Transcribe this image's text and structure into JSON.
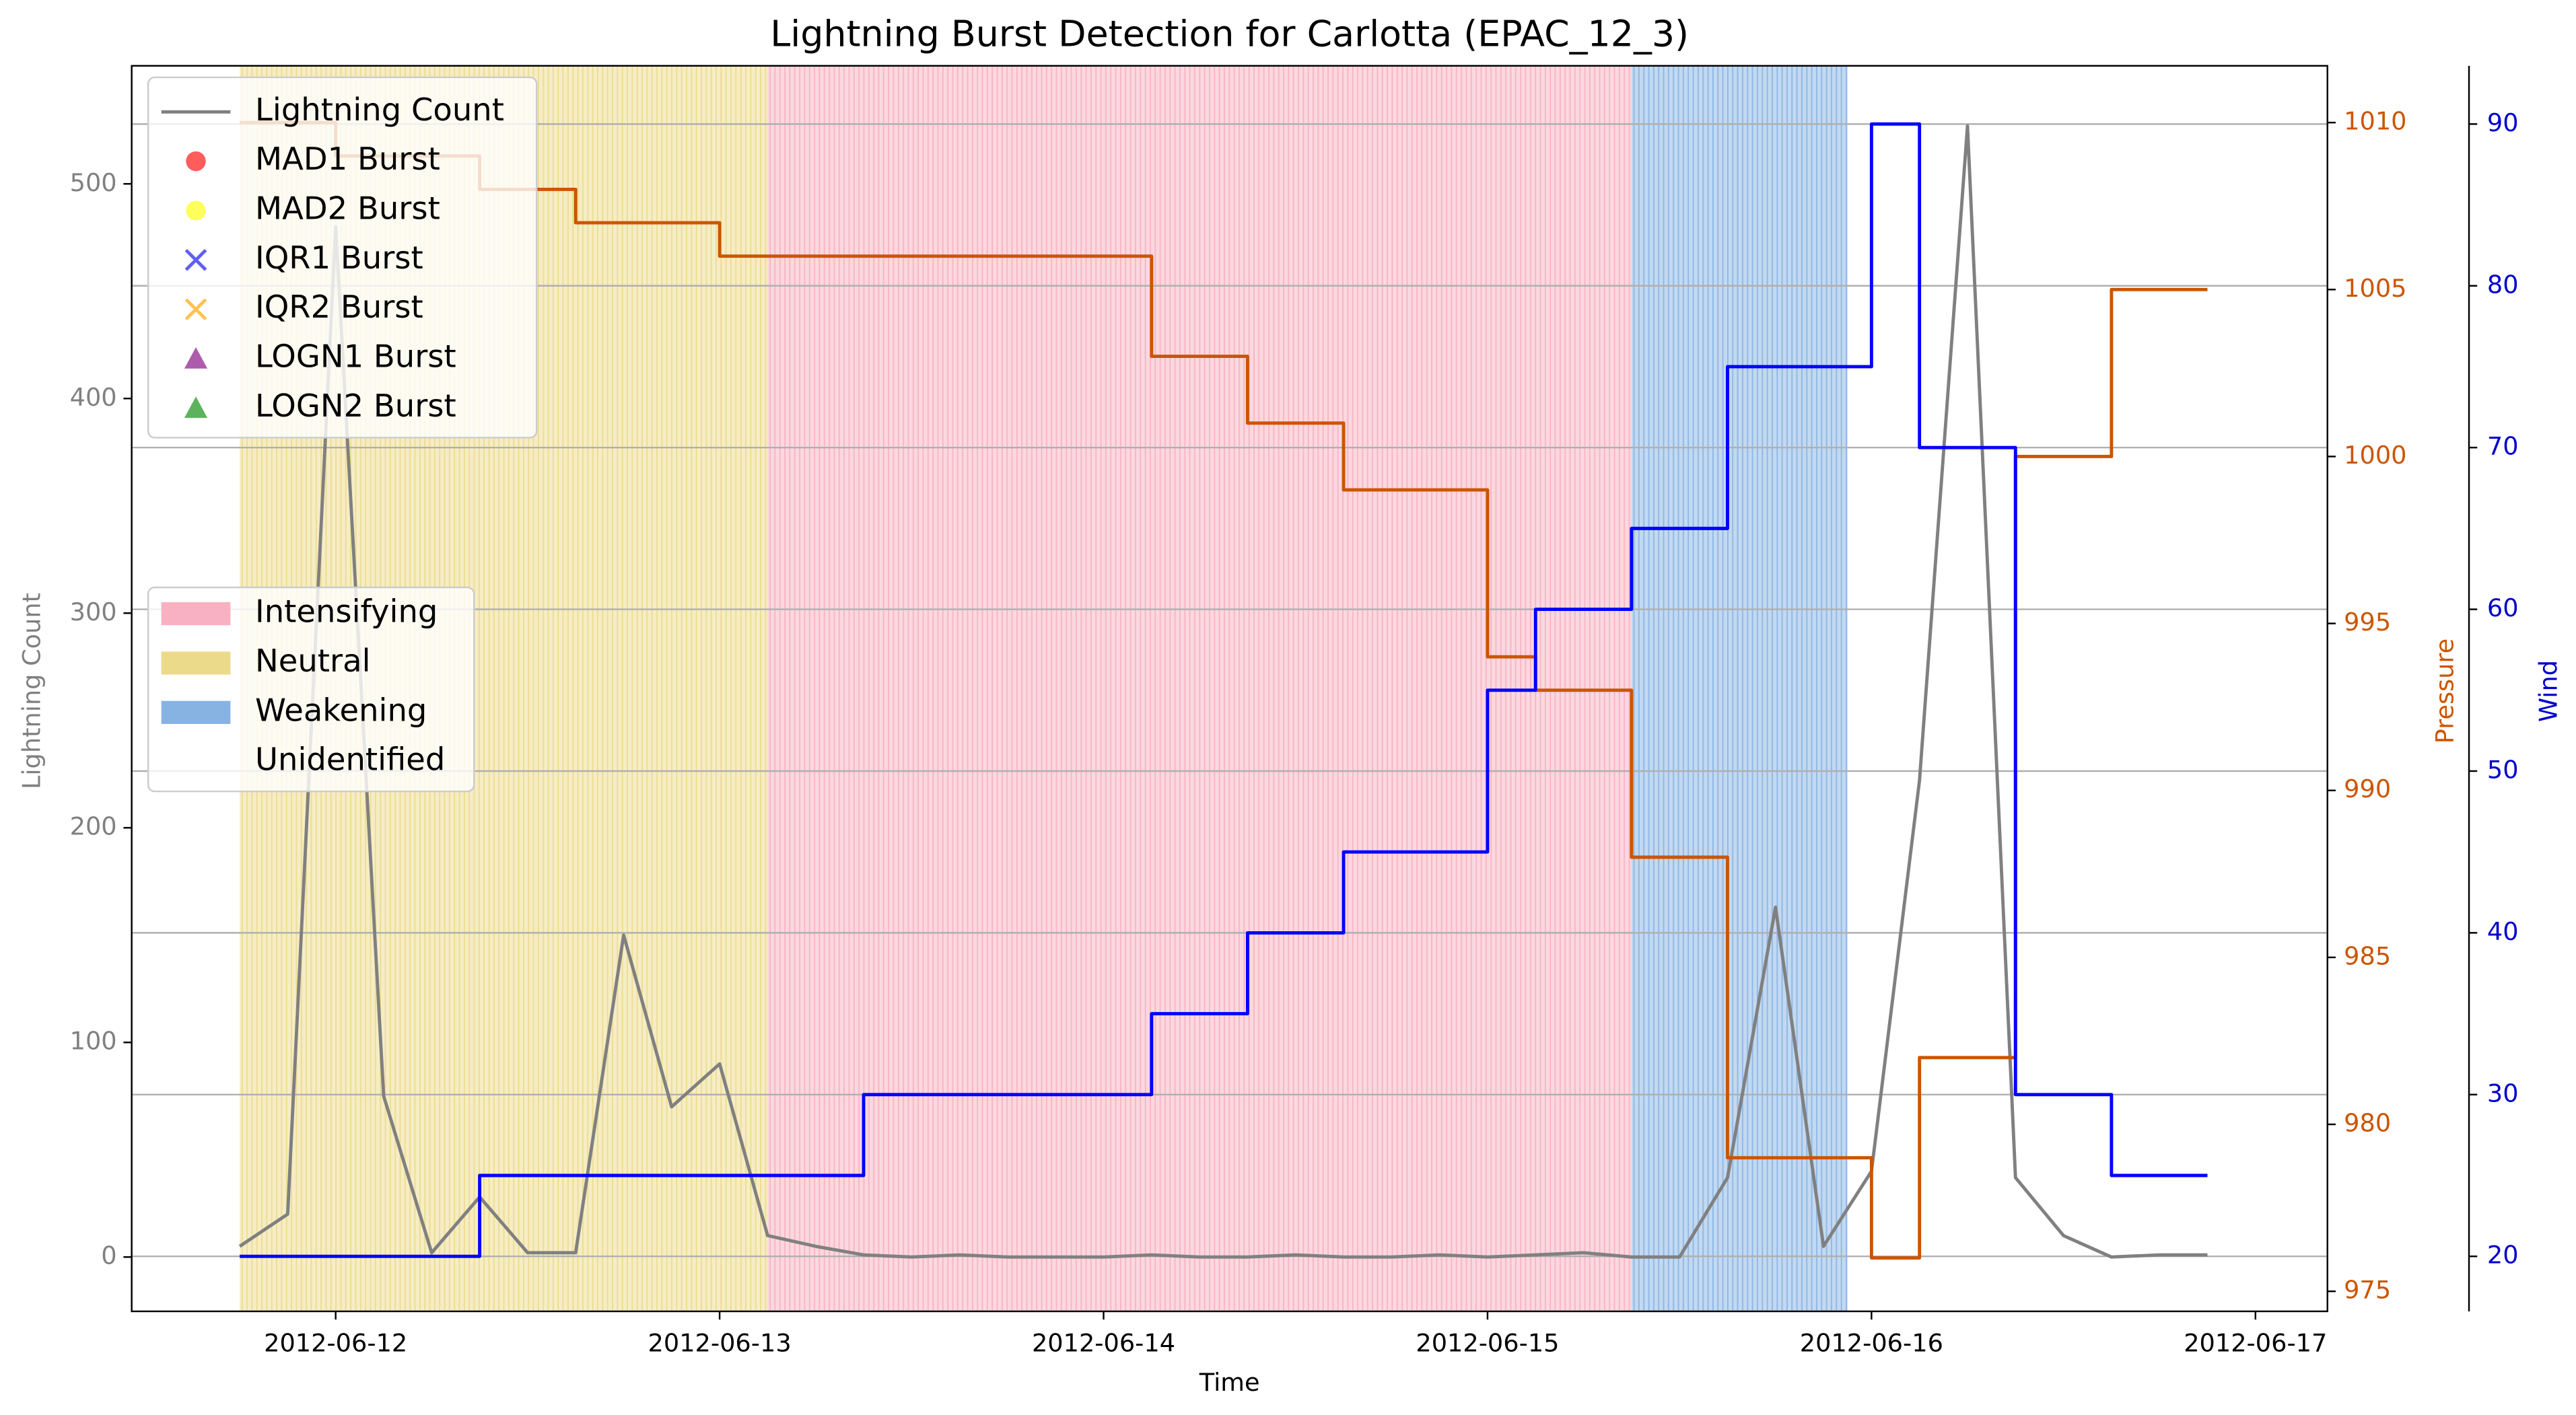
{
  "chart_data": {
    "type": "line",
    "title": "Lightning Burst Detection for Carlotta (EPAC_12_3)",
    "x_label": "Time",
    "y_label": "Lightning Count",
    "y2_label": "Pressure",
    "y3_label": "Wind",
    "x": [
      "2012-06-11T18:00",
      "2012-06-11T21:00",
      "2012-06-12T00:00",
      "2012-06-12T03:00",
      "2012-06-12T06:00",
      "2012-06-12T09:00",
      "2012-06-12T12:00",
      "2012-06-12T15:00",
      "2012-06-12T18:00",
      "2012-06-12T21:00",
      "2012-06-13T00:00",
      "2012-06-13T03:00",
      "2012-06-13T06:00",
      "2012-06-13T09:00",
      "2012-06-13T12:00",
      "2012-06-13T15:00",
      "2012-06-13T18:00",
      "2012-06-13T21:00",
      "2012-06-14T00:00",
      "2012-06-14T03:00",
      "2012-06-14T06:00",
      "2012-06-14T09:00",
      "2012-06-14T12:00",
      "2012-06-14T15:00",
      "2012-06-14T18:00",
      "2012-06-14T21:00",
      "2012-06-15T00:00",
      "2012-06-15T03:00",
      "2012-06-15T06:00",
      "2012-06-15T09:00",
      "2012-06-15T12:00",
      "2012-06-15T15:00",
      "2012-06-15T18:00",
      "2012-06-15T21:00",
      "2012-06-16T00:00",
      "2012-06-16T03:00",
      "2012-06-16T06:00",
      "2012-06-16T09:00",
      "2012-06-16T12:00",
      "2012-06-16T15:00",
      "2012-06-16T18:00",
      "2012-06-16T21:00"
    ],
    "series": [
      {
        "name": "Lightning Count",
        "color": "#808080",
        "axis": "y",
        "step": false,
        "values": [
          5,
          20,
          480,
          75,
          2,
          28,
          2,
          2,
          150,
          70,
          90,
          10,
          5,
          1,
          0,
          1,
          0,
          0,
          0,
          1,
          0,
          0,
          1,
          0,
          0,
          1,
          0,
          1,
          2,
          0,
          0,
          37,
          163,
          5,
          40,
          222,
          527,
          37,
          10,
          0,
          1,
          1
        ]
      },
      {
        "name": "Pressure",
        "color": "#cc5500",
        "axis": "y2",
        "step": true,
        "values": [
          1010,
          1010,
          1009,
          1009,
          1009,
          1008,
          1008,
          1007,
          1007,
          1007,
          1006,
          1006,
          1006,
          1006,
          1006,
          1006,
          1006,
          1006,
          1006,
          1003,
          1003,
          1001,
          1001,
          999,
          999,
          999,
          994,
          993,
          993,
          988,
          988,
          979,
          979,
          979,
          976,
          982,
          982,
          1000,
          1000,
          1005,
          1005,
          1005
        ]
      },
      {
        "name": "Wind",
        "color": "#0000ff",
        "axis": "y3",
        "step": true,
        "values": [
          20,
          20,
          20,
          20,
          20,
          25,
          25,
          25,
          25,
          25,
          25,
          25,
          25,
          30,
          30,
          30,
          30,
          30,
          30,
          35,
          35,
          40,
          40,
          45,
          45,
          45,
          55,
          60,
          60,
          65,
          65,
          75,
          75,
          75,
          90,
          70,
          70,
          30,
          30,
          25,
          25,
          25
        ]
      }
    ],
    "burst_markers": [
      {
        "name": "MAD1 Burst",
        "color": "#ff3333",
        "marker": "circle"
      },
      {
        "name": "MAD2 Burst",
        "color": "#ffff33",
        "marker": "circle"
      },
      {
        "name": "IQR1 Burst",
        "color": "#4444ee",
        "marker": "x"
      },
      {
        "name": "IQR2 Burst",
        "color": "#ffb733",
        "marker": "x"
      },
      {
        "name": "LOGN1 Burst",
        "color": "#993399",
        "marker": "triangle"
      },
      {
        "name": "LOGN2 Burst",
        "color": "#33a033",
        "marker": "triangle"
      }
    ],
    "phases": [
      {
        "name": "Intensifying",
        "color": "#f7a8bb",
        "start": "2012-06-13T03:00",
        "end": "2012-06-15T09:00"
      },
      {
        "name": "Neutral",
        "color": "#ead67e",
        "start": "2012-06-11T18:00",
        "end": "2012-06-13T03:00"
      },
      {
        "name": "Weakening",
        "color": "#7aabe0",
        "start": "2012-06-15T09:00",
        "end": "2012-06-15T22:30"
      },
      {
        "name": "Unidentified",
        "color": "none"
      }
    ],
    "xlim": [
      "2012-06-11T11:15",
      "2012-06-17T04:30"
    ],
    "xticks": [
      "2012-06-12",
      "2012-06-13",
      "2012-06-14",
      "2012-06-15",
      "2012-06-16",
      "2012-06-17"
    ],
    "ylim": [
      -25.3,
      555
    ],
    "yticks": [
      0,
      100,
      200,
      300,
      400,
      500
    ],
    "y2lim": [
      974.4,
      1011.7
    ],
    "y2ticks": [
      975,
      980,
      985,
      990,
      995,
      1000,
      1005,
      1010
    ],
    "y3lim": [
      16.6,
      93.6
    ],
    "y3ticks": [
      20,
      30,
      40,
      50,
      60,
      70,
      80,
      90
    ],
    "grid": true,
    "grid_axis": "y3"
  }
}
